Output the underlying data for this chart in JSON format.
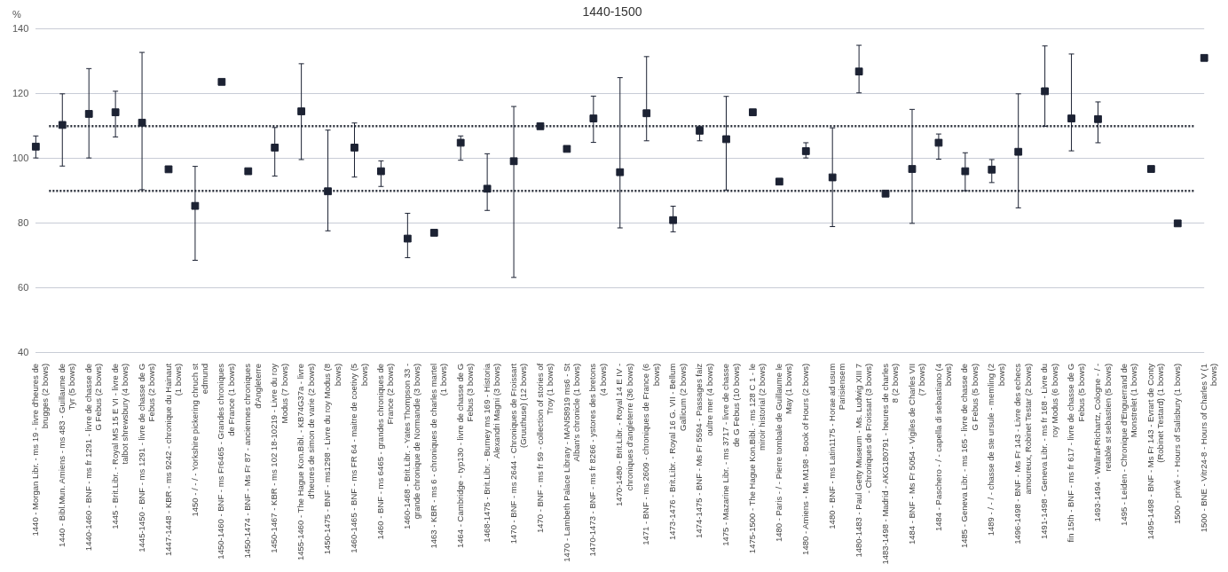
{
  "chart_data": {
    "type": "scatter",
    "title": "1440-1500",
    "ylabel": "%",
    "categories": [
      "1440 - Morgan Libr. - ms 19 - livre d'heures de brugges (2 bows)",
      "1440 - Bibl.Mun. Amiens - ms 483 - Guillaume de Tyr (5 bows)",
      "1440-1460 - BNF - ms fr 1291 - livre de chasse de G Febus (2 bows)",
      "1445 - Brit.Libr. - Royal MS 15 E VI - livre de talbot shrewsbury (4 bows)",
      "1445-1450 - BNF - ms 1291 - livre de chasse de G Febus (2 bows)",
      "1447-1448 - KBR - ms 9242 - chronique du Hainaut (1 bows)",
      "1450 - / - / - Yorkshire pickering chruch st edmund",
      "1450-1460 - BNF - ms Fr6465 - Grandes chroniques de France (1 bows)",
      "1450-1474 - BNF - Ms Fr 87 - anciennes chroniques d'Angleterre",
      "1450-1467 - KBR - ms 102 18-10219 - Livre du roy Modus (7 bows)",
      "1455-1460 - The Hague Kon.Bibl. - KB74G37a - livre d'heures de simon de varie (2 bows)",
      "1450-1475 - BNF - ms1298 - Livre du roy Modus (8 bows)",
      "1460-1465 - BNF - ms FR 64 - maitre de coetivy (5 bows)",
      "1460 - BNF - ms 6465 - grandes chroniques de France (2 bows)",
      "1460-1468 - Brit.Libr. - Yates Thompson 33 - grande chronique de Normandie (3 bows)",
      "1463 - KBR - ms 6 - chroniques de charles martel (1 bows)",
      "1464 - Cambridge - typ130 - livre de chasse de G Febus (3 bows)",
      "1468-1475 - Brit.Libr. - Burney ms 169 - Historia Alexandri Magni (3 bows)",
      "1470 - BNF - ms 2644 - Chroniques de Froissart (Gruuthuse) (12 bows)",
      "1470 - BNF - ms fr 59 - collection of stories of Troy (1 bows)",
      "1470 - Lambeth Palace Library - MAN58919 ms6 - St Alban's chronicle (1 bows)",
      "1470-1473 - BNF - ms fr 8266 - ystores des bretons (4 bows)",
      "1470-1480 - Brit.Libr. - Royal 14 E IV - chroniques d'angleterre (36 bows)",
      "1471 - BNF - ms 2609 - chroniques de France (6 bows)",
      "1473-1476 - Brit.Libr. - Royal 16 G. VII - Bellum Gallicum (2 bows)",
      "1474-1475 - BNF - Ms Fr 5594 - Passages faiz oultre mer (4 bows)",
      "1475 - Mazarine Libr. - ms 3717 - livre de chasse de G Febus (10 bows)",
      "1475-1500 - The Hague Kon.Bibl. - ms 128 C 1 - le miroir historial (2 bows)",
      "1480 - Paris - / - Pierre tombale de Guillaume le May (1 bows)",
      "1480 - Amiens - Ms M198 - Book of Hours (2 bows)",
      "1480 - BNF - ms Latin1175 - Horae ad usum Parisiensem",
      "1480-1483 - Paul Getty Museum - Ms. Ludwig XIII 7 - Chroniques de Froissart (3 bows)",
      "1483-1498 - Madrid - AKG180791 - heures de charles 8 (2 bows)",
      "1484 - BNF - Ms Fr 5054 - Vigiles de Charles VII (7 bows)",
      "1484 - Paschero - / - capella di sebastiano (4 bows)",
      "1485 - Geneva Libr. - ms 165 - livre de chasse de G Febus (5 bows)",
      "1489 - / - / - chasse de ste ursule - memling (2 bows)",
      "1496-1498 - BNF - Ms Fr 143 - Livre des echecs amoureux, Robinet Testar (2 bows)",
      "1491-1498 - Geneva Libr. - ms fr 168 - Livre du roy Modus (6 bows)",
      "fin 15th - BNF - ms fr 617 - livre de chasse de G Febus (5 bows)",
      "1493-1494 - Wallraf-Richartz, Cologne - / - retable st sebastien (5 bows)",
      "1495 - Leiden - Chronique d'Enguerrand de Monstrelet (1 bows)",
      "1495-1498 - BNF - Ms Fr 143 - Evrart de Conty (Robinet Testard) (1 bows)",
      "1500 - privé - - Hours of Salisbury (1 bows)",
      "1500 - BNE - Vitr24-8 - Hours of Charles V (1 bows)"
    ],
    "values": [
      103.7,
      110.4,
      113.8,
      114.3,
      111.1,
      96.7,
      85.4,
      123.7,
      96.1,
      103.4,
      114.6,
      89.9,
      103.4,
      96.1,
      75.3,
      77.1,
      104.9,
      90.7,
      99.2,
      110,
      103,
      112.4,
      95.8,
      114,
      81,
      108.6,
      106,
      114.3,
      92.9,
      102.3,
      94.2,
      126.9,
      89.2,
      96.8,
      104.9,
      96.1,
      96.6,
      102.1,
      120.8,
      112.4,
      112.2,
      null,
      96.8,
      80,
      131.1
    ],
    "errors": [
      [
        100.2,
        107
      ],
      [
        97.7,
        120
      ],
      [
        100.2,
        127.8
      ],
      [
        106.7,
        120.8
      ],
      [
        90.4,
        132.8
      ],
      null,
      [
        68.6,
        97.6
      ],
      null,
      null,
      [
        94.6,
        109.6
      ],
      [
        99.7,
        129.3
      ],
      [
        77.7,
        108.8
      ],
      [
        94.3,
        111
      ],
      [
        91.4,
        99.3
      ],
      [
        69.4,
        83.1
      ],
      null,
      [
        99.5,
        107
      ],
      [
        84,
        101.5
      ],
      [
        63.3,
        116.1
      ],
      null,
      null,
      [
        105,
        119.3
      ],
      [
        78.6,
        125
      ],
      [
        105.5,
        131.5
      ],
      [
        77.4,
        85.3
      ],
      [
        105.5,
        110
      ],
      [
        90.3,
        119.2
      ],
      null,
      null,
      [
        100.2,
        104.9
      ],
      [
        79,
        109.5
      ],
      [
        120.3,
        135
      ],
      null,
      [
        80,
        115.2
      ],
      [
        99.8,
        107.6
      ],
      [
        90.1,
        101.8
      ],
      [
        92.6,
        99.7
      ],
      [
        84.8,
        120
      ],
      [
        110,
        134.8
      ],
      [
        102.4,
        132.3
      ],
      [
        104.9,
        117.5
      ],
      null,
      null,
      null,
      null
    ],
    "color": "#1c2233",
    "marker": "square",
    "ylim": [
      40,
      140
    ],
    "yticks": [
      40,
      60,
      80,
      100,
      120,
      140
    ],
    "grid": "y",
    "legend": false,
    "ref_lines": [
      {
        "axis": "y",
        "value": 110,
        "color": "#2a2f3a",
        "line_style": "dotted"
      },
      {
        "axis": "y",
        "value": 90,
        "color": "#2a2f3a",
        "line_style": "dotted"
      }
    ]
  }
}
